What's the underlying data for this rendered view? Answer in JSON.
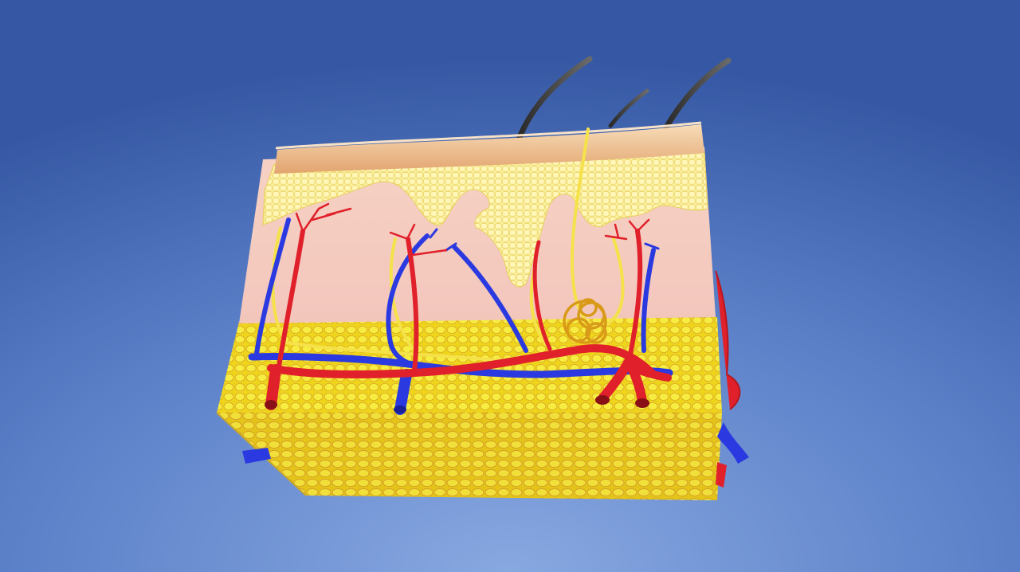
{
  "scene": {
    "subject": "skin-cross-section-3d-model",
    "background": {
      "top": "#3a5fa8",
      "bottom": "#7f9fda"
    },
    "colors": {
      "artery": "#e0202a",
      "vein": "#2a3ae0",
      "nerve": "#f2e040",
      "fat": "#f2e21a",
      "epidermis": "#f7dca8",
      "dermis": "#f1c9b8",
      "sweat_gland": "#d9a020",
      "hair": "#3a3a3a"
    },
    "icons": {
      "hair": "hair-shaft-icon",
      "gland": "sweat-gland-icon"
    }
  }
}
